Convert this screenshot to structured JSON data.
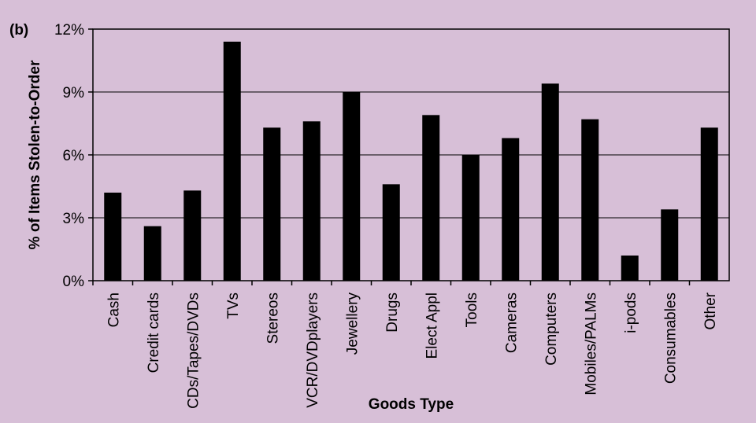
{
  "chart_data": {
    "type": "bar",
    "panel_label": "(b)",
    "xlabel": "Goods Type",
    "ylabel": "% of Items Stolen-to-Order",
    "ylim": [
      0,
      12
    ],
    "yticks": [
      "0%",
      "3%",
      "6%",
      "9%",
      "12%"
    ],
    "grid": true,
    "categories": [
      "Cash",
      "Credit cards",
      "CDs/Tapes/DVDs",
      "TVs",
      "Stereos",
      "VCR/DVDplayers",
      "Jewellery",
      "Drugs",
      "Elect Appl",
      "Tools",
      "Cameras",
      "Computers",
      "Mobiles/PALMs",
      "i-pods",
      "Consumables",
      "Other"
    ],
    "values": [
      4.2,
      2.6,
      4.3,
      11.4,
      7.3,
      7.6,
      9.0,
      4.6,
      7.9,
      6.0,
      6.8,
      9.4,
      7.7,
      1.2,
      3.4,
      7.3
    ],
    "bar_color": "#000000",
    "plot_background": "#d7bfd7"
  }
}
